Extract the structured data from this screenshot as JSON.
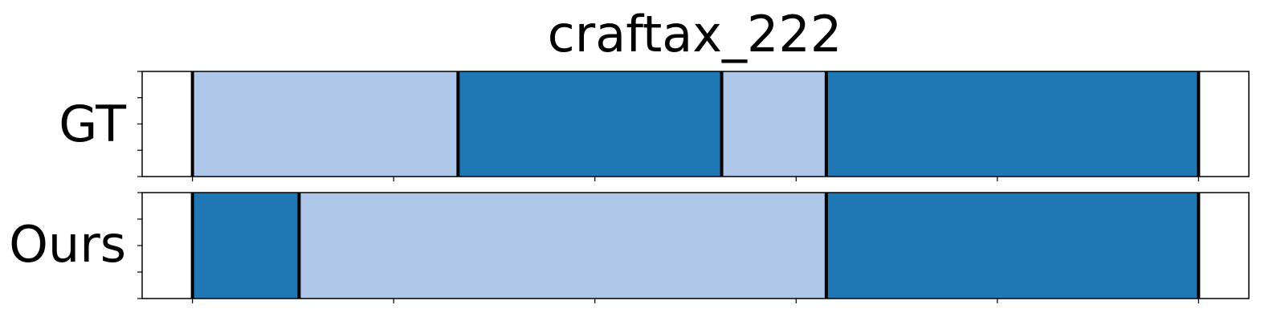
{
  "chart_data": {
    "type": "bar",
    "title": "craftax_222",
    "xlim": [
      -0.25,
      5.25
    ],
    "rows": [
      "GT",
      "Ours"
    ],
    "x_ticks": [
      0,
      1,
      2,
      3,
      4,
      5
    ],
    "y_ticks_per_row": 5,
    "tick_labels_shown": false,
    "colors": {
      "light": "#aec7e8",
      "dark": "#1f77b4",
      "boundary": "#000000",
      "frame": "#000000"
    },
    "series": [
      {
        "name": "GT",
        "segments": [
          {
            "start": 0.0,
            "end": 1.32,
            "color": "light"
          },
          {
            "start": 1.32,
            "end": 2.63,
            "color": "dark"
          },
          {
            "start": 2.63,
            "end": 3.15,
            "color": "light"
          },
          {
            "start": 3.15,
            "end": 5.0,
            "color": "dark"
          }
        ],
        "boundaries": [
          0.0,
          1.32,
          2.63,
          3.15,
          5.0
        ]
      },
      {
        "name": "Ours",
        "segments": [
          {
            "start": 0.0,
            "end": 0.53,
            "color": "dark"
          },
          {
            "start": 0.53,
            "end": 3.15,
            "color": "light"
          },
          {
            "start": 3.15,
            "end": 5.0,
            "color": "dark"
          }
        ],
        "boundaries": [
          0.0,
          0.53,
          3.15,
          5.0
        ]
      }
    ]
  }
}
